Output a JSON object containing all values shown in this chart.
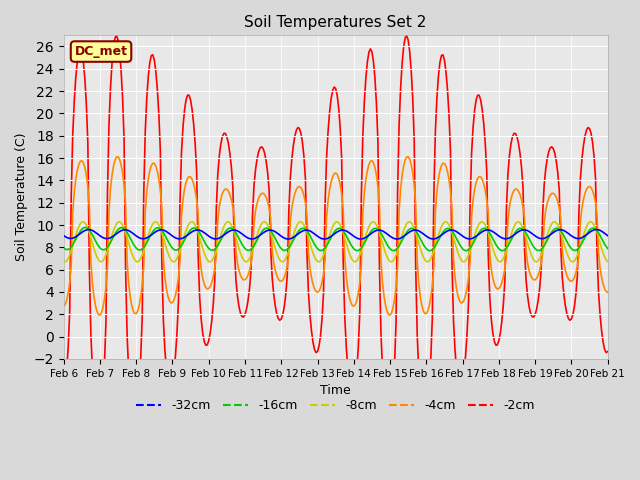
{
  "title": "Soil Temperatures Set 2",
  "xlabel": "Time",
  "ylabel": "Soil Temperature (C)",
  "ylim": [
    -2,
    27
  ],
  "yticks": [
    -2,
    0,
    2,
    4,
    6,
    8,
    10,
    12,
    14,
    16,
    18,
    20,
    22,
    24,
    26
  ],
  "facecolor": "#d9d9d9",
  "ax_facecolor": "#e8e8e8",
  "legend_label": "DC_met",
  "series_colors": {
    "-32cm": "#0000ff",
    "-16cm": "#00cc00",
    "-8cm": "#cccc00",
    "-4cm": "#ff8800",
    "-2cm": "#ff0000"
  },
  "xtick_labels": [
    "Feb 6",
    "Feb 7",
    "Feb 8",
    "Feb 9",
    "Feb 10",
    "Feb 11",
    "Feb 12",
    "Feb 13",
    "Feb 14",
    "Feb 15",
    "Feb 16",
    "Feb 17",
    "Feb 18",
    "Feb 19",
    "Feb 20",
    "Feb 21"
  ],
  "n_points": 361,
  "days": 15,
  "depth_32_mean": 9.2,
  "depth_32_amp": 0.4,
  "depth_16_mean": 8.8,
  "depth_16_amp": 1.0,
  "depth_8_mean": 8.5,
  "depth_8_amp": 1.8,
  "depth_4_mean": 9.0,
  "depth_4_amp": 5.5,
  "depth_2_mean": 9.5,
  "depth_2_amp": 12.5
}
